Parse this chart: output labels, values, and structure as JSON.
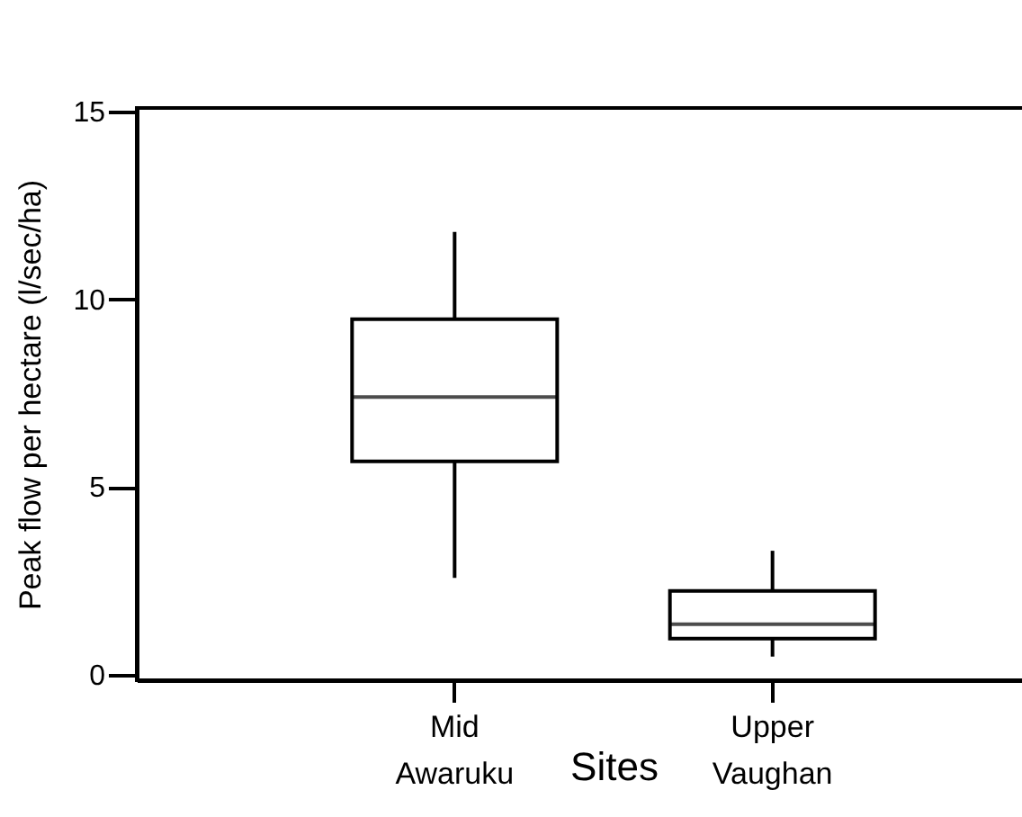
{
  "chart_data": {
    "type": "box",
    "categories": [
      "Mid Awaruku",
      "Upper Vaughan"
    ],
    "boxes": [
      {
        "low": 2.58,
        "q1": 5.68,
        "median": 7.4,
        "q3": 9.47,
        "high": 11.8
      },
      {
        "low": 0.48,
        "q1": 0.96,
        "median": 1.34,
        "q3": 2.23,
        "high": 3.3
      }
    ],
    "xlabel": "Sites",
    "ylabel": "Peak flow per hectare (l/sec/ha)",
    "ylim": [
      -0.15,
      15.1
    ],
    "yticks": [
      0,
      5,
      10,
      15
    ],
    "grid": false
  }
}
